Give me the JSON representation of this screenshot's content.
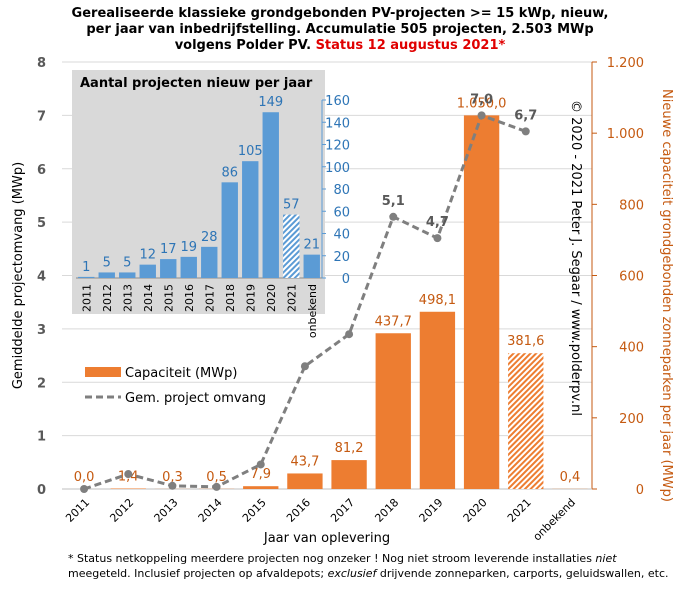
{
  "chart_data": [
    {
      "type": "bar_line",
      "title_lines": [
        "Gerealiseerde klassieke grondgebonden PV-projecten >= 15 kWp, nieuw,",
        "per jaar van inbedrijfstelling. Accumulatie 505 projecten, 2.503 MWp",
        "volgens Polder PV."
      ],
      "title_status": "Status 12 augustus 2021*",
      "xlabel": "Jaar van oplevering",
      "ylabel": "Gemiddelde projectomvang (MWp)",
      "y2label": "Nieuwe capaciteit grondgebonden zonneparken per jaar (MWp)",
      "copyright": "© 2020 - 2021 Peter J. Segaar / www.polderpv.nl",
      "categories": [
        "2011",
        "2012",
        "2013",
        "2014",
        "2015",
        "2016",
        "2017",
        "2018",
        "2019",
        "2020",
        "2021",
        "onbekend"
      ],
      "ylim": [
        0,
        8
      ],
      "yticks": [
        0,
        1,
        2,
        3,
        4,
        5,
        6,
        7,
        8
      ],
      "y2lim": [
        0,
        1200
      ],
      "y2ticks": [
        0,
        200,
        400,
        600,
        800,
        {
          "value": 1000,
          "label": "1.000"
        },
        {
          "value": 1200,
          "label": "1.200"
        }
      ],
      "legend": "left",
      "series": [
        {
          "name": "Capaciteit (MWp)",
          "kind": "bar",
          "axis": "y2",
          "color": "#ed7d31",
          "values": [
            0.0,
            1.4,
            0.3,
            0.5,
            7.9,
            43.7,
            81.2,
            437.7,
            498.1,
            1050.0,
            381.6,
            0.4
          ],
          "value_labels": [
            "0,0",
            "1,4",
            "0,3",
            "0,5",
            "7,9",
            "43,7",
            "81,2",
            "437,7",
            "498,1",
            "1.050,0",
            "381,6",
            "0,4"
          ],
          "hatched": [
            false,
            false,
            false,
            false,
            false,
            false,
            false,
            false,
            false,
            false,
            true,
            false
          ]
        },
        {
          "name": "Gem. project omvang",
          "kind": "line",
          "color": "#7f7f7f",
          "values": [
            0.0,
            0.28,
            0.06,
            0.04,
            0.46,
            2.3,
            2.9,
            5.1,
            4.7,
            7.0,
            6.7,
            null
          ],
          "value_labels": [
            null,
            null,
            null,
            null,
            null,
            null,
            null,
            "5,1",
            "4,7",
            "7,0",
            "6,7",
            null
          ]
        }
      ]
    },
    {
      "type": "bar",
      "title": "Aantal projecten nieuw per jaar",
      "categories": [
        "2011",
        "2012",
        "2013",
        "2014",
        "2015",
        "2016",
        "2017",
        "2018",
        "2019",
        "2020",
        "2021",
        "onbekend"
      ],
      "values": [
        1,
        5,
        5,
        12,
        17,
        19,
        28,
        86,
        105,
        149,
        57,
        21
      ],
      "hatched": [
        false,
        false,
        false,
        false,
        false,
        false,
        false,
        false,
        false,
        false,
        true,
        false
      ],
      "color": "#5b9bd5",
      "ylim": [
        0,
        160
      ],
      "yticks": [
        0,
        20,
        40,
        60,
        80,
        100,
        120,
        140,
        160
      ]
    }
  ],
  "footnote": [
    {
      "text": "* Status netkoppeling meerdere projecten nog onzeker ! Nog niet stroom leverende installaties ",
      "italic": false
    },
    {
      "text": "niet",
      "italic": true
    },
    {
      "text": "meegeteld. Inclusief projecten op afvaldepots; ",
      "italic": false,
      "newline": true
    },
    {
      "text": "exclusief",
      "italic": true
    },
    {
      "text": " drijvende zonneparken, carports, geluidswallen, etc.",
      "italic": false
    }
  ]
}
